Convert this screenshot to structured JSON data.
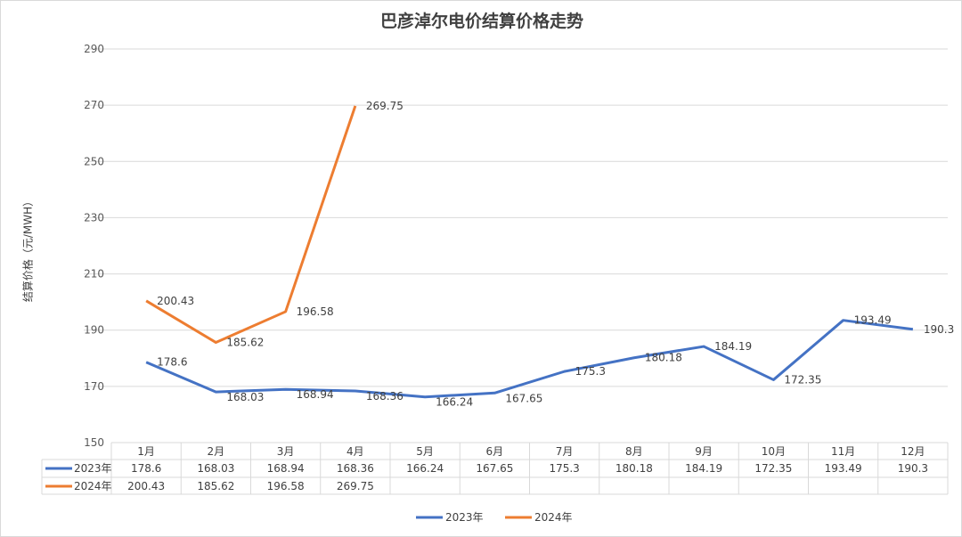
{
  "chart_data": {
    "type": "line",
    "title": "巴彦淖尔电价结算价格走势",
    "ylabel": "结算价格（元/MWH）",
    "xlabel": "",
    "ylim": [
      150,
      290
    ],
    "yticks": [
      150,
      170,
      190,
      210,
      230,
      250,
      270,
      290
    ],
    "grid": true,
    "legend": "bottom",
    "categories": [
      "1月",
      "2月",
      "3月",
      "4月",
      "5月",
      "6月",
      "7月",
      "8月",
      "9月",
      "10月",
      "11月",
      "12月"
    ],
    "series": [
      {
        "name": "2023年",
        "color": "#4472c4",
        "values": [
          178.6,
          168.03,
          168.94,
          168.36,
          166.24,
          167.65,
          175.3,
          180.18,
          184.19,
          172.35,
          193.49,
          190.3
        ]
      },
      {
        "name": "2024年",
        "color": "#ed7d31",
        "values": [
          200.43,
          185.62,
          196.58,
          269.75,
          null,
          null,
          null,
          null,
          null,
          null,
          null,
          null
        ]
      }
    ],
    "data_table": true
  }
}
